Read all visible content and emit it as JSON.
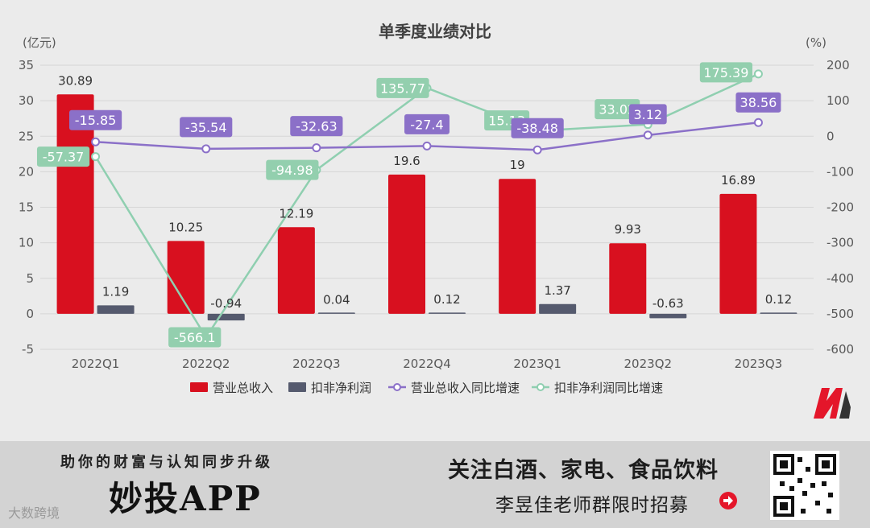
{
  "colors": {
    "revenue": "#d8101f",
    "profit": "#555a6e",
    "revenue_yoy": "#8b70c8",
    "profit_yoy": "#8fcfb0",
    "profit_yoy_label_bg": "#93cfae",
    "revenue_yoy_label_bg": "#8b70c8",
    "axis_text": "#595959",
    "grid": "#d6d6d6",
    "title": "#404040",
    "brand": "#e4162a"
  },
  "chart_data": {
    "type": "bar",
    "title": "单季度业绩对比",
    "ylabel_left": "(亿元)",
    "ylabel_right": "(%)",
    "ylim_left": [
      -5,
      35
    ],
    "ylim_right": [
      -600,
      200
    ],
    "yticks_left": [
      "35",
      "30",
      "25",
      "20",
      "15",
      "10",
      "5",
      "0",
      "-5"
    ],
    "yticks_right": [
      "200",
      "100",
      "0",
      "-100",
      "-200",
      "-300",
      "-400",
      "-500",
      "-600"
    ],
    "grid": true,
    "legend_position": "bottom",
    "categories": [
      "2022Q1",
      "2022Q2",
      "2022Q3",
      "2022Q4",
      "2023Q1",
      "2023Q2",
      "2023Q3"
    ],
    "series": [
      {
        "name": "营业总收入",
        "type": "bar",
        "axis": "left",
        "values": [
          30.89,
          10.25,
          12.19,
          19.6,
          19,
          9.93,
          16.89
        ],
        "labels": [
          "30.89",
          "10.25",
          "12.19",
          "19.6",
          "19",
          "9.93",
          "16.89"
        ]
      },
      {
        "name": "扣非净利润",
        "type": "bar",
        "axis": "left",
        "values": [
          1.19,
          -0.94,
          0.04,
          0.12,
          1.37,
          -0.63,
          0.12
        ],
        "labels": [
          "1.19",
          "-0.94",
          "0.04",
          "0.12",
          "1.37",
          "-0.63",
          "0.12"
        ]
      },
      {
        "name": "营业总收入同比增速",
        "type": "line",
        "axis": "right",
        "values": [
          -15.85,
          -35.54,
          -32.63,
          -27.4,
          -38.48,
          3.12,
          38.56
        ],
        "labels": [
          "-15.85",
          "-35.54",
          "-32.63",
          "-27.4",
          "-38.48",
          "3.12",
          "38.56"
        ]
      },
      {
        "name": "扣非净利润同比增速",
        "type": "line",
        "axis": "right",
        "values": [
          -57.37,
          -566.1,
          -94.98,
          135.77,
          15.13,
          33.02,
          175.39
        ],
        "labels": [
          "-57.37",
          "-566.1",
          "-94.98",
          "135.77",
          "15.13",
          "33.02",
          "175.39"
        ]
      }
    ]
  },
  "footer": {
    "slogan": "助你的财富与认知同步升级",
    "app_name": "妙投APP",
    "watermark": "大数跨境",
    "follow_text": "关注白酒、家电、食品饮料",
    "recruit_text": "李昱佳老师群限时招募",
    "arrow_icon": "arrow-right-circle-icon",
    "qr_icon": "qr-code-icon",
    "logo_icon": "brand-logo-icon"
  }
}
